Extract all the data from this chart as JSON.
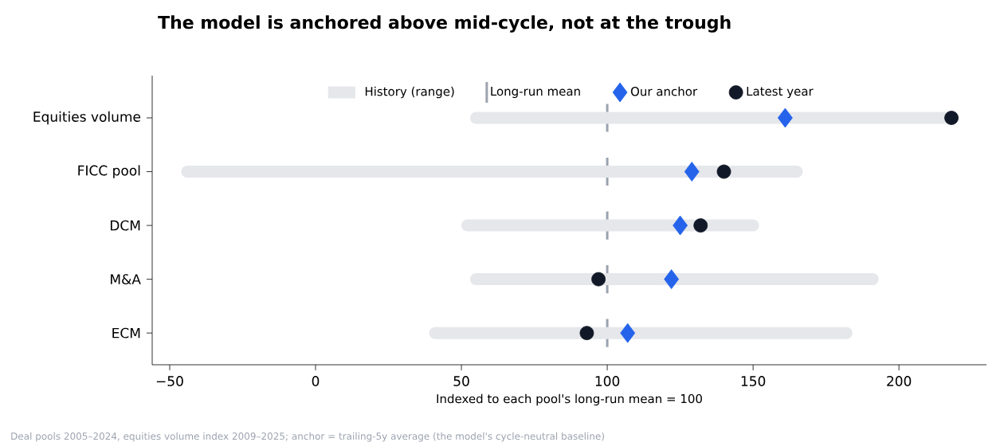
{
  "chart_data": {
    "type": "bar",
    "orientation": "horizontal",
    "title": "The model is anchored above mid-cycle, not at the trough",
    "xlabel": "Indexed to each pool's long-run mean = 100",
    "categories": [
      "Equities volume",
      "FICC pool",
      "DCM",
      "M&A",
      "ECM"
    ],
    "series": [
      {
        "name": "History (range)",
        "color": "#e5e7eb",
        "base": [
          55,
          -44,
          52,
          55,
          41
        ],
        "values": [
          163,
          209,
          98,
          136,
          141
        ]
      },
      {
        "name": "Our anchor",
        "type": "scatter",
        "marker": "diamond",
        "color": "#2563eb",
        "values": [
          161,
          129,
          125,
          122,
          107
        ]
      },
      {
        "name": "Latest year",
        "type": "scatter",
        "marker": "circle",
        "color": "#111827",
        "values": [
          218,
          140,
          132,
          97,
          93
        ]
      }
    ],
    "xlim": [
      -56,
      230
    ],
    "xticks": [
      {
        "value": -50,
        "label": "−50"
      },
      0,
      50,
      100,
      150,
      200
    ],
    "ref_lines": [
      {
        "axis": "x",
        "value": 100,
        "label": "Long-run mean",
        "color": "#9ca3af"
      }
    ],
    "legend": "top",
    "grid": false,
    "annotations": [
      "Deal pools 2005–2024, equities volume index 2009–2025; anchor = trailing-5y average (the model's cycle-neutral baseline)"
    ]
  }
}
